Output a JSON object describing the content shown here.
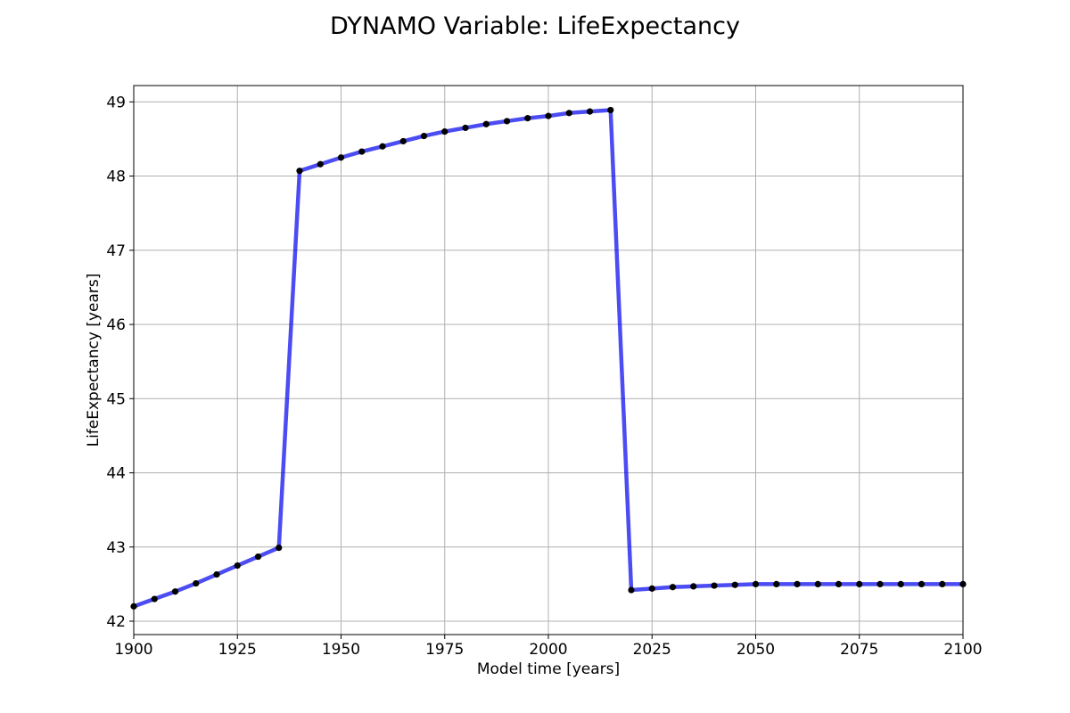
{
  "chart_data": {
    "type": "line",
    "title": "DYNAMO Variable: LifeExpectancy",
    "xlabel": "Model time [years]",
    "ylabel": "LifeExpectancy [years]",
    "xlim": [
      1900,
      2100
    ],
    "ylim": [
      41.82,
      49.22
    ],
    "xticks": [
      1900,
      1925,
      1950,
      1975,
      2000,
      2025,
      2050,
      2075,
      2100
    ],
    "yticks": [
      42,
      43,
      44,
      45,
      46,
      47,
      48,
      49
    ],
    "grid": true,
    "colors": {
      "line": "#0000ee",
      "marker": "#000000"
    },
    "series": [
      {
        "x": [
          1900,
          1905,
          1910,
          1915,
          1920,
          1925,
          1930,
          1935,
          1940,
          1945,
          1950,
          1955,
          1960,
          1965,
          1970,
          1975,
          1980,
          1985,
          1990,
          1995,
          2000,
          2005,
          2010,
          2015,
          2020,
          2025,
          2030,
          2035,
          2040,
          2045,
          2050,
          2055,
          2060,
          2065,
          2070,
          2075,
          2080,
          2085,
          2090,
          2095,
          2100
        ],
        "y": [
          42.2,
          42.3,
          42.4,
          42.51,
          42.63,
          42.75,
          42.87,
          42.99,
          48.07,
          48.16,
          48.25,
          48.33,
          48.4,
          48.47,
          48.54,
          48.6,
          48.65,
          48.7,
          48.74,
          48.78,
          48.81,
          48.85,
          48.87,
          48.89,
          42.42,
          42.44,
          42.46,
          42.47,
          42.48,
          42.49,
          42.5,
          42.5,
          42.5,
          42.5,
          42.5,
          42.5,
          42.5,
          42.5,
          42.5,
          42.5,
          42.5
        ]
      }
    ]
  }
}
